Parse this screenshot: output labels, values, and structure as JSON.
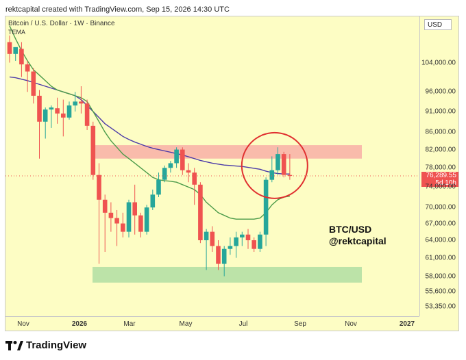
{
  "header": {
    "caption": "rektcapital created with TradingView.com, Sep 15, 2026 14:30 UTC"
  },
  "chart": {
    "symbol_line": "Bitcoin / U.S. Dollar · 1W · Binance",
    "indicator": "TEMA",
    "currency": "USD",
    "watermark_line1": "BTC/USD",
    "watermark_line2": "@rektcapital",
    "current_price": "76,289.55",
    "countdown": "5d 10h",
    "price_labels": [
      "104,000.00",
      "96,000.00",
      "91,000.00",
      "86,000.00",
      "82,000.00",
      "78,000.00",
      "74,000.00",
      "70,000.00",
      "67,000.00",
      "64,000.00",
      "61,000.00",
      "58,000.00",
      "55,600.00",
      "53,350.00"
    ],
    "time_labels": [
      "Nov",
      "2026",
      "Mar",
      "May",
      "Jul",
      "Sep",
      "Nov",
      "2027"
    ],
    "colors": {
      "up": "#26a69a",
      "down": "#ef5350",
      "background": "#fdfdc4",
      "resistance_zone": "#f8b4a8",
      "support_zone": "#b5e0a5",
      "ema_fast": "#4c9b4a",
      "ema_slow": "#4b3aa8",
      "highlight_circle": "#e03030"
    }
  },
  "chart_data": {
    "type": "candlestick",
    "interval": "1W",
    "candles": [
      {
        "o": 110000,
        "h": 112000,
        "c": 106500,
        "l": 104000
      },
      {
        "o": 106500,
        "h": 108000,
        "c": 108500,
        "l": 104500
      },
      {
        "o": 108000,
        "h": 110000,
        "c": 103500,
        "l": 100000
      },
      {
        "o": 103500,
        "h": 104500,
        "c": 101500,
        "l": 96000
      },
      {
        "o": 101500,
        "h": 102500,
        "c": 95000,
        "l": 93000
      },
      {
        "o": 95000,
        "h": 96500,
        "c": 88500,
        "l": 80000
      },
      {
        "o": 88500,
        "h": 92000,
        "c": 91500,
        "l": 84500
      },
      {
        "o": 91500,
        "h": 92500,
        "c": 92000,
        "l": 87000
      },
      {
        "o": 91800,
        "h": 94500,
        "c": 90500,
        "l": 88000
      },
      {
        "o": 90500,
        "h": 94000,
        "c": 89500,
        "l": 85000
      },
      {
        "o": 89500,
        "h": 93500,
        "c": 92500,
        "l": 89000
      },
      {
        "o": 92500,
        "h": 96000,
        "c": 93500,
        "l": 91000
      },
      {
        "o": 93500,
        "h": 97500,
        "c": 93000,
        "l": 90500
      },
      {
        "o": 93000,
        "h": 94000,
        "c": 87500,
        "l": 86500
      },
      {
        "o": 87500,
        "h": 88500,
        "c": 76500,
        "l": 75500
      },
      {
        "o": 76500,
        "h": 79000,
        "c": 71500,
        "l": 60000
      },
      {
        "o": 71500,
        "h": 72500,
        "c": 69000,
        "l": 62000
      },
      {
        "o": 69000,
        "h": 71000,
        "c": 68000,
        "l": 65500
      },
      {
        "o": 68000,
        "h": 69500,
        "c": 67000,
        "l": 63000
      },
      {
        "o": 67000,
        "h": 69000,
        "c": 65500,
        "l": 64500
      },
      {
        "o": 65500,
        "h": 71500,
        "c": 71000,
        "l": 64500
      },
      {
        "o": 71000,
        "h": 74500,
        "c": 68500,
        "l": 65000
      },
      {
        "o": 68500,
        "h": 69000,
        "c": 65500,
        "l": 64500
      },
      {
        "o": 65500,
        "h": 70500,
        "c": 70000,
        "l": 65000
      },
      {
        "o": 70000,
        "h": 73500,
        "c": 72500,
        "l": 69500
      },
      {
        "o": 72500,
        "h": 77000,
        "c": 75500,
        "l": 72000
      },
      {
        "o": 75500,
        "h": 78500,
        "c": 78000,
        "l": 75000
      },
      {
        "o": 78000,
        "h": 79500,
        "c": 79000,
        "l": 77000
      },
      {
        "o": 79000,
        "h": 82500,
        "c": 82000,
        "l": 78000
      },
      {
        "o": 82000,
        "h": 82500,
        "c": 77500,
        "l": 76500
      },
      {
        "o": 77500,
        "h": 79000,
        "c": 77000,
        "l": 75000
      },
      {
        "o": 77000,
        "h": 78000,
        "c": 74500,
        "l": 70500
      },
      {
        "o": 74500,
        "h": 75000,
        "c": 64000,
        "l": 63500
      },
      {
        "o": 64000,
        "h": 66000,
        "c": 65500,
        "l": 59000
      },
      {
        "o": 65500,
        "h": 66500,
        "c": 63000,
        "l": 62000
      },
      {
        "o": 63000,
        "h": 64000,
        "c": 60000,
        "l": 59000
      },
      {
        "o": 60000,
        "h": 63000,
        "c": 62500,
        "l": 58000
      },
      {
        "o": 62500,
        "h": 64500,
        "c": 63000,
        "l": 61500
      },
      {
        "o": 63000,
        "h": 65500,
        "c": 64500,
        "l": 61000
      },
      {
        "o": 64500,
        "h": 65500,
        "c": 65000,
        "l": 63000
      },
      {
        "o": 65000,
        "h": 66000,
        "c": 64000,
        "l": 62500
      },
      {
        "o": 64000,
        "h": 64500,
        "c": 62500,
        "l": 62000
      },
      {
        "o": 62500,
        "h": 65500,
        "c": 65000,
        "l": 62000
      },
      {
        "o": 65000,
        "h": 76000,
        "c": 75500,
        "l": 63000
      },
      {
        "o": 75500,
        "h": 80500,
        "c": 77500,
        "l": 75000
      },
      {
        "o": 77500,
        "h": 82500,
        "c": 81000,
        "l": 76500
      },
      {
        "o": 81000,
        "h": 81500,
        "c": 76500,
        "l": 76000
      },
      {
        "o": 76500,
        "h": 81000,
        "c": 76300,
        "l": 75500
      }
    ],
    "ema_fast": [
      115000,
      111000,
      107500,
      104500,
      102000,
      100500,
      99000,
      97500,
      96500,
      96000,
      95500,
      95000,
      94500,
      93500,
      91000,
      88500,
      86000,
      84000,
      82500,
      81000,
      80000,
      79000,
      78000,
      77000,
      76000,
      75500,
      75300,
      75200,
      75000,
      74500,
      74000,
      73500,
      72500,
      71000,
      70000,
      69000,
      68500,
      68000,
      67800,
      67800,
      67800,
      67800,
      68000,
      69000,
      70500,
      71500,
      72000,
      72200
    ],
    "ema_slow": [
      100000,
      99800,
      99400,
      99000,
      98500,
      98000,
      97500,
      97000,
      96500,
      96000,
      95500,
      95000,
      94000,
      92500,
      91000,
      89500,
      88000,
      87000,
      86000,
      85000,
      84300,
      83700,
      83200,
      82700,
      82300,
      82000,
      81700,
      81400,
      81100,
      80800,
      80400,
      80000,
      79600,
      79300,
      79000,
      78800,
      78600,
      78500,
      78400,
      78300,
      78100,
      77900,
      77700,
      77300,
      77000,
      76800,
      76700,
      76700
    ],
    "zones": [
      {
        "from": 80000,
        "to": 83000
      },
      {
        "from": 57000,
        "to": 59500
      }
    ],
    "y_scale": "log",
    "ylim": [
      52000,
      118000
    ]
  }
}
